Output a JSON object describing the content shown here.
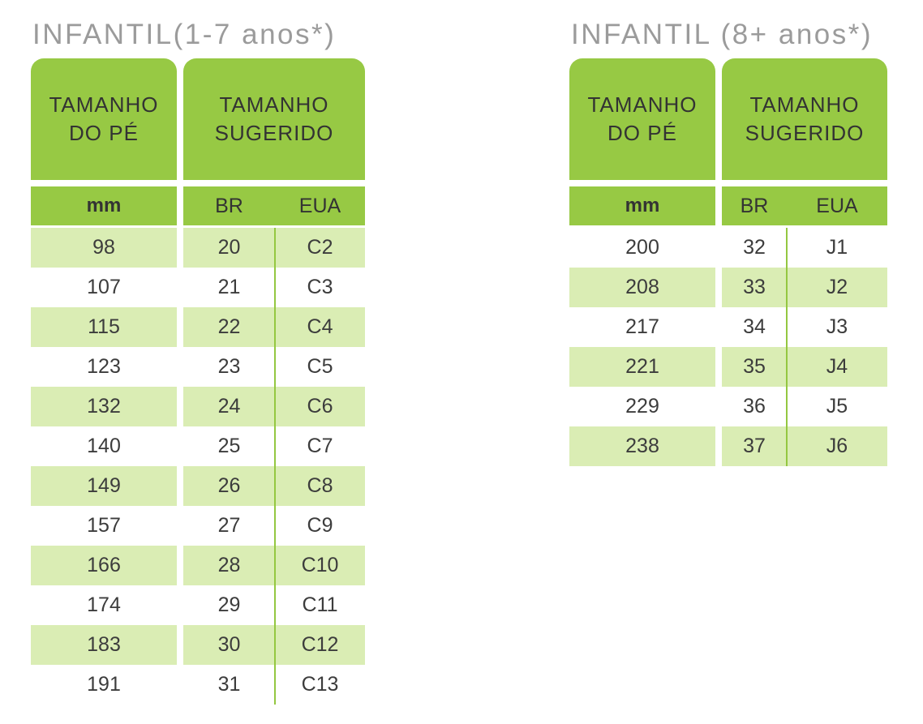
{
  "colors": {
    "header_green": "#97C944",
    "stripe_green": "#DAEDB4",
    "divider_green": "#94C741",
    "title_gray": "#9B9B9B",
    "text_dark": "#3C3C3C",
    "background": "#FFFFFF"
  },
  "tables": [
    {
      "title": "INFANTIL(1-7 anos*)",
      "col1_header": [
        "TAMANHO",
        "DO PÉ"
      ],
      "col2_header": [
        "TAMANHO",
        "SUGERIDO"
      ],
      "unit_label": "mm",
      "sub_labels": [
        "BR",
        "EUA"
      ],
      "rows": [
        {
          "mm": "98",
          "br": "20",
          "eua": "C2",
          "shaded": true
        },
        {
          "mm": "107",
          "br": "21",
          "eua": "C3",
          "shaded": false
        },
        {
          "mm": "115",
          "br": "22",
          "eua": "C4",
          "shaded": true
        },
        {
          "mm": "123",
          "br": "23",
          "eua": "C5",
          "shaded": false
        },
        {
          "mm": "132",
          "br": "24",
          "eua": "C6",
          "shaded": true
        },
        {
          "mm": "140",
          "br": "25",
          "eua": "C7",
          "shaded": false
        },
        {
          "mm": "149",
          "br": "26",
          "eua": "C8",
          "shaded": true
        },
        {
          "mm": "157",
          "br": "27",
          "eua": "C9",
          "shaded": false
        },
        {
          "mm": "166",
          "br": "28",
          "eua": "C10",
          "shaded": true
        },
        {
          "mm": "174",
          "br": "29",
          "eua": "C11",
          "shaded": false
        },
        {
          "mm": "183",
          "br": "30",
          "eua": "C12",
          "shaded": true
        },
        {
          "mm": "191",
          "br": "31",
          "eua": "C13",
          "shaded": false
        }
      ]
    },
    {
      "title": "INFANTIL (8+ anos*)",
      "col1_header": [
        "TAMANHO",
        "DO PÉ"
      ],
      "col2_header": [
        "TAMANHO",
        "SUGERIDO"
      ],
      "unit_label": "mm",
      "sub_labels": [
        "BR",
        "EUA"
      ],
      "rows": [
        {
          "mm": "200",
          "br": "32",
          "eua": "J1",
          "shaded": false
        },
        {
          "mm": "208",
          "br": "33",
          "eua": "J2",
          "shaded": true
        },
        {
          "mm": "217",
          "br": "34",
          "eua": "J3",
          "shaded": false
        },
        {
          "mm": "221",
          "br": "35",
          "eua": "J4",
          "shaded": true
        },
        {
          "mm": "229",
          "br": "36",
          "eua": "J5",
          "shaded": false
        },
        {
          "mm": "238",
          "br": "37",
          "eua": "J6",
          "shaded": true
        }
      ]
    }
  ],
  "chart_data": [
    {
      "type": "table",
      "title": "INFANTIL(1-7 anos*)",
      "columns": [
        "TAMANHO DO PÉ (mm)",
        "TAMANHO SUGERIDO BR",
        "TAMANHO SUGERIDO EUA"
      ],
      "rows": [
        [
          98,
          20,
          "C2"
        ],
        [
          107,
          21,
          "C3"
        ],
        [
          115,
          22,
          "C4"
        ],
        [
          123,
          23,
          "C5"
        ],
        [
          132,
          24,
          "C6"
        ],
        [
          140,
          25,
          "C7"
        ],
        [
          149,
          26,
          "C8"
        ],
        [
          157,
          27,
          "C9"
        ],
        [
          166,
          28,
          "C10"
        ],
        [
          174,
          29,
          "C11"
        ],
        [
          183,
          30,
          "C12"
        ],
        [
          191,
          31,
          "C13"
        ]
      ]
    },
    {
      "type": "table",
      "title": "INFANTIL (8+ anos*)",
      "columns": [
        "TAMANHO DO PÉ (mm)",
        "TAMANHO SUGERIDO BR",
        "TAMANHO SUGERIDO EUA"
      ],
      "rows": [
        [
          200,
          32,
          "J1"
        ],
        [
          208,
          33,
          "J2"
        ],
        [
          217,
          34,
          "J3"
        ],
        [
          221,
          35,
          "J4"
        ],
        [
          229,
          36,
          "J5"
        ],
        [
          238,
          37,
          "J6"
        ]
      ]
    }
  ]
}
